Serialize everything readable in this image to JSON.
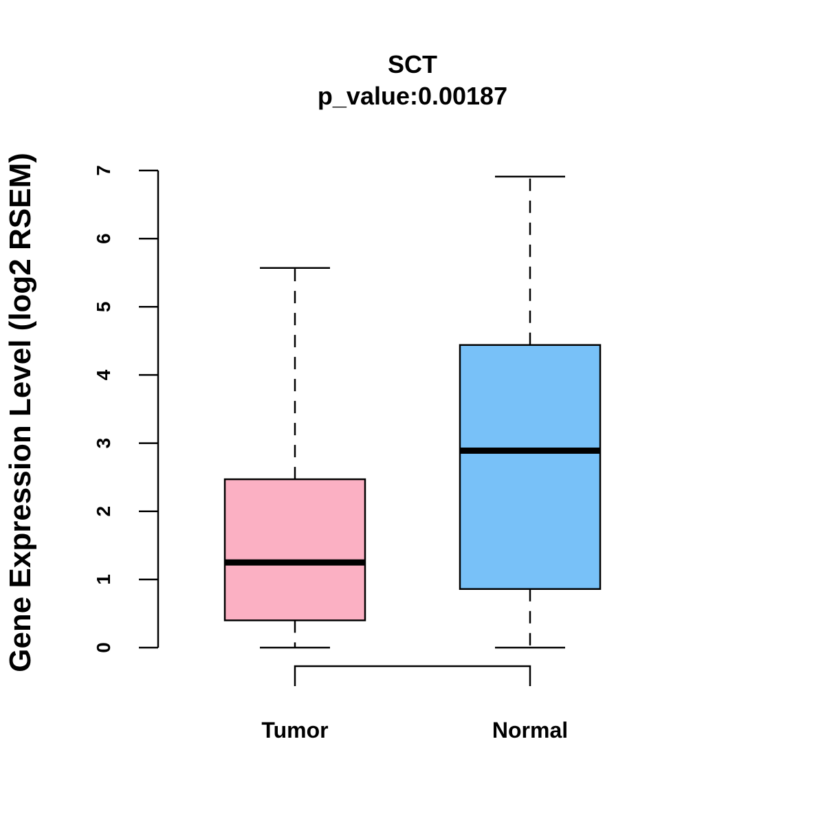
{
  "chart_data": {
    "type": "box",
    "title": "SCT",
    "subtitle": "p_value:0.00187",
    "ylabel": "Gene Expression Level (log2 RSEM)",
    "xlabel": "",
    "ylim": [
      0,
      7
    ],
    "yticks": [
      "0",
      "1",
      "2",
      "3",
      "4",
      "5",
      "6",
      "7"
    ],
    "grid": false,
    "categories": [
      "Tumor",
      "Normal"
    ],
    "boxes": [
      {
        "name": "Tumor",
        "min": 0.0,
        "q1": 0.4,
        "median": 1.25,
        "q3": 2.47,
        "max": 5.57,
        "color": "#FBB0C3"
      },
      {
        "name": "Normal",
        "min": 0.0,
        "q1": 0.86,
        "median": 2.89,
        "q3": 4.44,
        "max": 6.91,
        "color": "#78C1F8"
      }
    ],
    "comparison_bracket": [
      "Tumor",
      "Normal"
    ]
  }
}
